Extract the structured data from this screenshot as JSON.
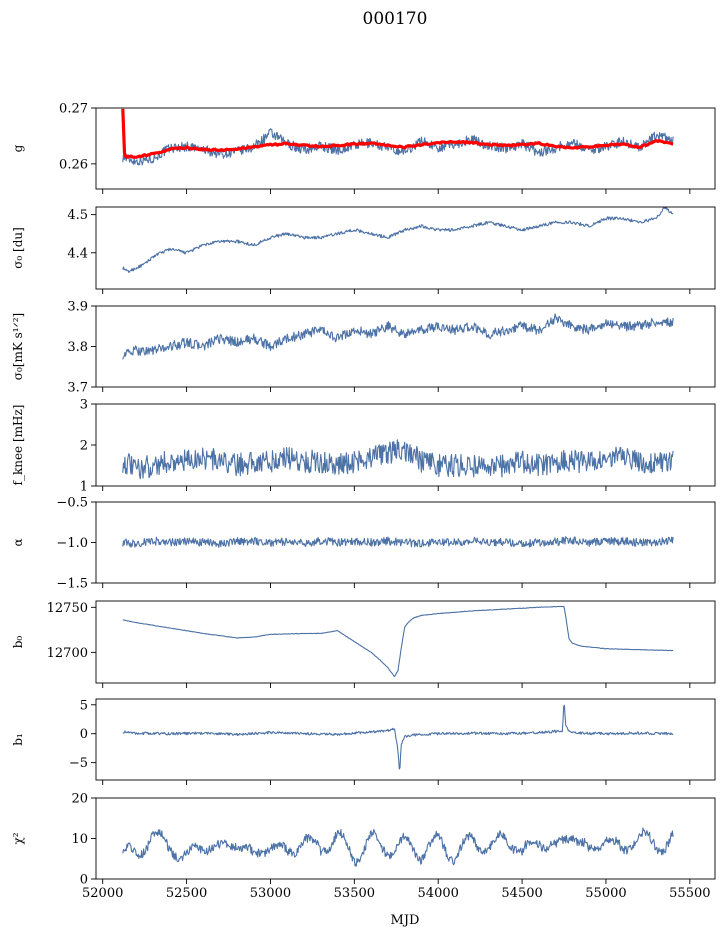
{
  "title": "000170",
  "colors": {
    "series": "#4c72a6",
    "fit": "#ff0000"
  },
  "chart_data": [
    {
      "type": "line",
      "ylabel": "g",
      "ylim": [
        0.2555,
        0.27
      ],
      "yticks": [
        0.26,
        0.27
      ],
      "ytick_labels": [
        "0.26",
        "0.27"
      ],
      "series": [
        {
          "key": "g",
          "color": "#4c72a6",
          "x": [
            52120,
            52200,
            52300,
            52400,
            52500,
            52600,
            52700,
            52800,
            52900,
            53000,
            53100,
            53200,
            53300,
            53400,
            53500,
            53600,
            53700,
            53800,
            53900,
            54000,
            54100,
            54200,
            54300,
            54400,
            54500,
            54600,
            54700,
            54800,
            54900,
            55000,
            55100,
            55200,
            55300,
            55400
          ],
          "y": [
            0.2612,
            0.2605,
            0.261,
            0.2628,
            0.2631,
            0.2625,
            0.2618,
            0.2622,
            0.263,
            0.2655,
            0.2636,
            0.2625,
            0.2632,
            0.2625,
            0.2633,
            0.2638,
            0.2628,
            0.2622,
            0.2641,
            0.263,
            0.2635,
            0.2644,
            0.2632,
            0.2628,
            0.2636,
            0.262,
            0.2629,
            0.2638,
            0.2625,
            0.2631,
            0.264,
            0.263,
            0.265,
            0.2642
          ]
        },
        {
          "key": "g_fit",
          "color": "#ff0000",
          "x": [
            52120,
            52125,
            52140,
            52200,
            52300,
            52400,
            52500,
            52600,
            52700,
            52800,
            52900,
            53000,
            53100,
            53200,
            53300,
            53400,
            53500,
            53600,
            53700,
            53800,
            53900,
            54000,
            54100,
            54200,
            54300,
            54400,
            54500,
            54600,
            54700,
            54800,
            54900,
            55000,
            55100,
            55200,
            55300,
            55400
          ],
          "y": [
            0.27,
            0.262,
            0.2613,
            0.2612,
            0.2618,
            0.2626,
            0.2629,
            0.2626,
            0.2624,
            0.2627,
            0.263,
            0.2634,
            0.2636,
            0.2633,
            0.2631,
            0.2633,
            0.2635,
            0.2637,
            0.2633,
            0.263,
            0.2634,
            0.2638,
            0.264,
            0.2638,
            0.2635,
            0.2633,
            0.2634,
            0.2637,
            0.2631,
            0.2629,
            0.2631,
            0.2633,
            0.2636,
            0.2629,
            0.2642,
            0.2637
          ]
        }
      ]
    },
    {
      "type": "line",
      "ylabel": "σ₀ [du]",
      "ylim": [
        4.305,
        4.52
      ],
      "yticks": [
        4.4,
        4.5
      ],
      "ytick_labels": [
        "4.4",
        "4.5"
      ],
      "series": [
        {
          "key": "sigma0_du",
          "color": "#4c72a6",
          "x": [
            52120,
            52150,
            52200,
            52250,
            52300,
            52400,
            52500,
            52600,
            52700,
            52800,
            52900,
            53000,
            53100,
            53200,
            53300,
            53400,
            53500,
            53600,
            53700,
            53800,
            53900,
            54000,
            54100,
            54200,
            54300,
            54400,
            54500,
            54600,
            54700,
            54800,
            54900,
            55000,
            55100,
            55200,
            55300,
            55350,
            55400
          ],
          "y": [
            4.36,
            4.35,
            4.36,
            4.37,
            4.39,
            4.41,
            4.4,
            4.42,
            4.43,
            4.43,
            4.42,
            4.44,
            4.45,
            4.44,
            4.44,
            4.45,
            4.46,
            4.45,
            4.44,
            4.46,
            4.47,
            4.46,
            4.46,
            4.47,
            4.48,
            4.47,
            4.46,
            4.47,
            4.48,
            4.48,
            4.47,
            4.49,
            4.49,
            4.48,
            4.49,
            4.52,
            4.5
          ]
        }
      ]
    },
    {
      "type": "line",
      "ylabel": "σ₀[mK s¹ᐟ²]",
      "ylim": [
        3.7,
        3.9
      ],
      "yticks": [
        3.7,
        3.8,
        3.9
      ],
      "ytick_labels": [
        "3.7",
        "3.8",
        "3.9"
      ],
      "series": [
        {
          "key": "sigma0_mk",
          "color": "#4c72a6",
          "x": [
            52120,
            52200,
            52300,
            52400,
            52500,
            52600,
            52700,
            52800,
            52900,
            53000,
            53100,
            53200,
            53300,
            53400,
            53500,
            53600,
            53700,
            53800,
            53900,
            54000,
            54100,
            54200,
            54300,
            54400,
            54500,
            54600,
            54700,
            54800,
            54900,
            55000,
            55100,
            55200,
            55300,
            55400
          ],
          "y": [
            3.78,
            3.79,
            3.79,
            3.8,
            3.81,
            3.8,
            3.82,
            3.81,
            3.82,
            3.8,
            3.82,
            3.83,
            3.84,
            3.82,
            3.84,
            3.83,
            3.85,
            3.83,
            3.84,
            3.85,
            3.84,
            3.85,
            3.83,
            3.84,
            3.85,
            3.84,
            3.87,
            3.85,
            3.84,
            3.86,
            3.85,
            3.85,
            3.86,
            3.86
          ]
        }
      ]
    },
    {
      "type": "line",
      "ylabel": "f_knee [mHz]",
      "ylim": [
        1,
        3
      ],
      "yticks": [
        1,
        2,
        3
      ],
      "ytick_labels": [
        "1",
        "2",
        "3"
      ],
      "series": [
        {
          "key": "fknee",
          "color": "#4c72a6",
          "x": [
            52120,
            52200,
            52300,
            52400,
            52500,
            52600,
            52700,
            52800,
            52900,
            53000,
            53100,
            53200,
            53300,
            53400,
            53500,
            53600,
            53700,
            53800,
            53900,
            54000,
            54100,
            54200,
            54300,
            54400,
            54500,
            54600,
            54700,
            54800,
            54900,
            55000,
            55100,
            55200,
            55300,
            55400
          ],
          "y": [
            1.6,
            1.4,
            1.5,
            1.6,
            1.6,
            1.7,
            1.6,
            1.5,
            1.6,
            1.6,
            1.7,
            1.6,
            1.6,
            1.5,
            1.6,
            1.7,
            1.8,
            1.9,
            1.6,
            1.5,
            1.5,
            1.5,
            1.4,
            1.5,
            1.6,
            1.5,
            1.6,
            1.6,
            1.6,
            1.7,
            1.7,
            1.6,
            1.6,
            1.6
          ]
        }
      ]
    },
    {
      "type": "line",
      "ylabel": "α",
      "ylim": [
        -1.5,
        -0.5
      ],
      "yticks": [
        -1.5,
        -1.0,
        -0.5
      ],
      "ytick_labels": [
        "−1.5",
        "−1.0",
        "−0.5"
      ],
      "series": [
        {
          "key": "alpha",
          "color": "#4c72a6",
          "x": [
            52120,
            52200,
            52300,
            52400,
            52500,
            52600,
            52700,
            52800,
            52900,
            53000,
            53100,
            53200,
            53300,
            53400,
            53500,
            53600,
            53700,
            53800,
            53900,
            54000,
            54100,
            54200,
            54300,
            54400,
            54500,
            54600,
            54700,
            54800,
            54900,
            55000,
            55100,
            55200,
            55300,
            55400
          ],
          "y": [
            -1.0,
            -1.02,
            -0.98,
            -1.0,
            -0.99,
            -1.0,
            -1.01,
            -0.99,
            -0.98,
            -1.0,
            -0.99,
            -1.01,
            -0.98,
            -1.0,
            -0.99,
            -1.0,
            -0.98,
            -1.0,
            -1.01,
            -0.99,
            -1.0,
            -0.98,
            -1.0,
            -0.99,
            -1.01,
            -1.0,
            -0.99,
            -0.97,
            -1.0,
            -0.98,
            -0.99,
            -1.0,
            -0.99,
            -0.98
          ]
        }
      ]
    },
    {
      "type": "line",
      "ylabel": "b₀",
      "ylim": [
        12666,
        12757
      ],
      "yticks": [
        12700,
        12750
      ],
      "ytick_labels": [
        "12700",
        "12750"
      ],
      "series": [
        {
          "key": "b0",
          "color": "#4c72a6",
          "x": [
            52120,
            52200,
            52400,
            52600,
            52800,
            52900,
            53000,
            53200,
            53300,
            53400,
            53500,
            53600,
            53650,
            53700,
            53740,
            53760,
            53780,
            53800,
            53820,
            53850,
            53900,
            54000,
            54200,
            54400,
            54600,
            54750,
            54760,
            54780,
            54800,
            54850,
            55000,
            55200,
            55400
          ],
          "y": [
            12736,
            12733,
            12727,
            12721,
            12716,
            12717,
            12720,
            12721,
            12721,
            12724,
            12712,
            12700,
            12692,
            12683,
            12673,
            12680,
            12705,
            12728,
            12733,
            12738,
            12741,
            12743,
            12746,
            12748,
            12750,
            12751,
            12740,
            12715,
            12710,
            12707,
            12704,
            12703,
            12702
          ]
        }
      ]
    },
    {
      "type": "line",
      "ylabel": "b₁",
      "ylim": [
        -8,
        6
      ],
      "yticks": [
        -5,
        0,
        5
      ],
      "ytick_labels": [
        "−5",
        "0",
        "5"
      ],
      "series": [
        {
          "key": "b1",
          "color": "#4c72a6",
          "x": [
            52120,
            52200,
            52400,
            52600,
            52800,
            53000,
            53200,
            53400,
            53600,
            53700,
            53740,
            53760,
            53770,
            53780,
            53790,
            53800,
            53850,
            54000,
            54200,
            54400,
            54600,
            54740,
            54750,
            54760,
            54770,
            54790,
            54850,
            55000,
            55200,
            55400
          ],
          "y": [
            0.3,
            0.1,
            0.0,
            0.1,
            -0.1,
            0.2,
            0.0,
            -0.1,
            0.3,
            0.6,
            0.8,
            -3.0,
            -6.6,
            -2.0,
            -1.0,
            -0.5,
            -0.2,
            0.0,
            0.1,
            0.0,
            0.2,
            0.5,
            5.6,
            1.5,
            0.8,
            0.3,
            0.1,
            0.0,
            0.1,
            0.0
          ]
        }
      ]
    },
    {
      "type": "line",
      "ylabel": "χ²",
      "ylim": [
        0,
        20
      ],
      "yticks": [
        0,
        10,
        20
      ],
      "ytick_labels": [
        "0",
        "10",
        "20"
      ],
      "series": [
        {
          "key": "chi2",
          "color": "#4c72a6",
          "x": [
            52120,
            52200,
            52300,
            52400,
            52500,
            52600,
            52700,
            52800,
            52900,
            53000,
            53100,
            53200,
            53300,
            53400,
            53500,
            53600,
            53700,
            53800,
            53900,
            54000,
            54100,
            54200,
            54300,
            54400,
            54500,
            54600,
            54700,
            54800,
            54900,
            55000,
            55100,
            55200,
            55300,
            55400
          ],
          "y": [
            7,
            6,
            11,
            8,
            5,
            9,
            7,
            10,
            5,
            9,
            6,
            10,
            7,
            11,
            5,
            10,
            7,
            9,
            6,
            10,
            5,
            10,
            7,
            11,
            6,
            10,
            7,
            12,
            6,
            11,
            6,
            12,
            7,
            11
          ]
        }
      ]
    }
  ],
  "xaxis": {
    "label": "MJD",
    "xlim": [
      51960,
      55650
    ],
    "ticks": [
      52000,
      52500,
      53000,
      53500,
      54000,
      54500,
      55000,
      55500
    ],
    "tick_labels": [
      "52000",
      "52500",
      "53000",
      "53500",
      "54000",
      "54500",
      "55000",
      "55500"
    ]
  }
}
